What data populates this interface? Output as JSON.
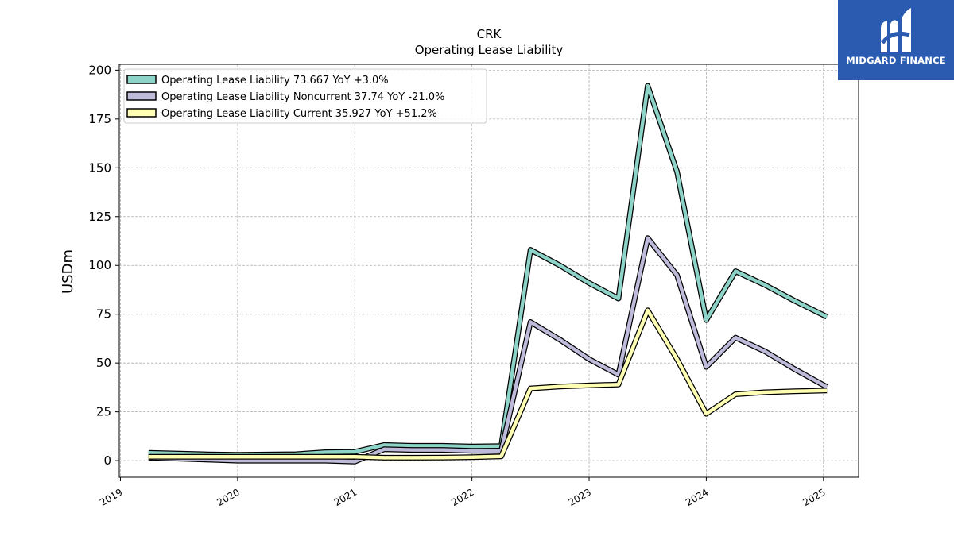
{
  "chart_data": {
    "type": "line",
    "title": "CRK",
    "subtitle": "Operating Lease Liability",
    "ylabel": "USDm",
    "xlabel": "",
    "ylim": [
      -8.5,
      203
    ],
    "xlim": [
      2018.99,
      2025.3
    ],
    "yticks": [
      0,
      25,
      50,
      75,
      100,
      125,
      150,
      175,
      200
    ],
    "xticks": [
      2019,
      2020,
      2021,
      2022,
      2023,
      2024,
      2025
    ],
    "xtick_labels": [
      "2019",
      "2020",
      "2021",
      "2022",
      "2023",
      "2024",
      "2025"
    ],
    "grid": true,
    "legend_position": "top-left",
    "series": [
      {
        "name": "Operating Lease Liability  73.667 YoY +3.0%",
        "color": "#8dd3c7",
        "x": [
          2019.24,
          2019.75,
          2020.0,
          2020.5,
          2020.75,
          2021.0,
          2021.25,
          2021.5,
          2021.75,
          2022.0,
          2022.25,
          2022.5,
          2022.75,
          2023.0,
          2023.25,
          2023.5,
          2023.75,
          2024.0,
          2024.25,
          2024.5,
          2024.75,
          2025.03
        ],
        "y": [
          4.0,
          3.2,
          3.0,
          3.3,
          4.3,
          4.5,
          8.0,
          7.6,
          7.6,
          7.3,
          7.5,
          108,
          100,
          91,
          83,
          192,
          148,
          72,
          97,
          90,
          82,
          73.667
        ]
      },
      {
        "name": "Operating Lease Liability Noncurrent  37.74 YoY -21.0%",
        "color": "#bebada",
        "x": [
          2019.24,
          2019.75,
          2020.0,
          2020.5,
          2020.75,
          2021.0,
          2021.25,
          2021.5,
          2021.75,
          2022.0,
          2022.25,
          2022.5,
          2022.75,
          2023.0,
          2023.25,
          2023.5,
          2023.75,
          2024.0,
          2024.25,
          2024.5,
          2024.75,
          2025.03
        ],
        "y": [
          1.5,
          0.5,
          0.0,
          0.0,
          0.0,
          -0.5,
          5.8,
          5.5,
          5.5,
          5.0,
          5.0,
          71,
          62,
          52,
          44,
          114,
          95,
          48,
          63,
          56,
          47,
          37.74
        ]
      },
      {
        "name": "Operating Lease Liability Current  35.927 YoY +51.2%",
        "color": "#ffffb3",
        "x": [
          2019.24,
          2019.75,
          2020.0,
          2020.5,
          2020.75,
          2021.0,
          2021.25,
          2021.5,
          2021.75,
          2022.0,
          2022.25,
          2022.5,
          2022.75,
          2023.0,
          2023.25,
          2023.5,
          2023.75,
          2024.0,
          2024.25,
          2024.5,
          2024.75,
          2025.03
        ],
        "y": [
          2.0,
          2.0,
          2.0,
          2.0,
          2.0,
          2.0,
          1.5,
          1.5,
          1.6,
          1.8,
          2.2,
          37,
          38,
          38.5,
          39,
          77,
          52,
          24,
          34,
          35,
          35.5,
          35.927
        ]
      }
    ]
  },
  "logo": {
    "text": "MIDGARD FINANCE"
  }
}
